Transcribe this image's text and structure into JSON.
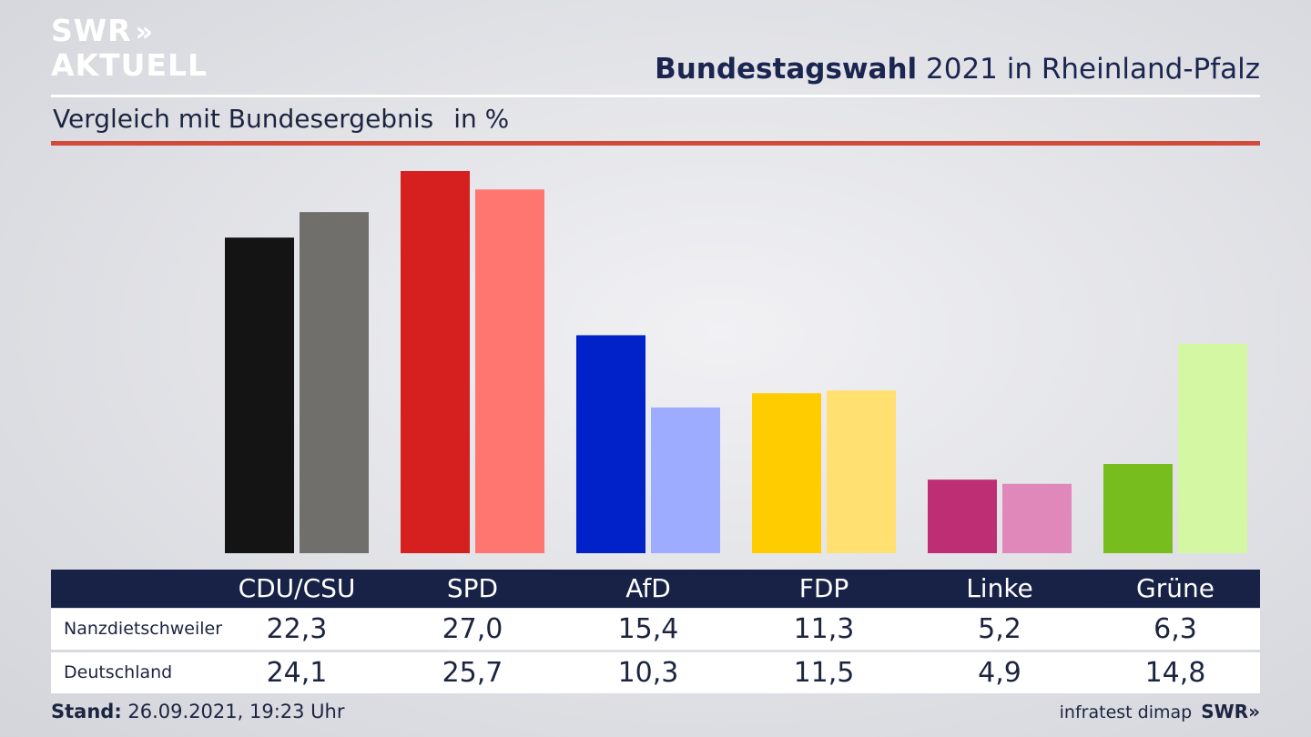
{
  "logo": {
    "line1": "SWR",
    "arrows": "»",
    "line2": "AKTUELL"
  },
  "header": {
    "title_bold": "Bundestagswahl",
    "title_rest": " 2021 in Rheinland-Pfalz"
  },
  "subtitle": {
    "text": "Vergleich mit Bundesergebnis",
    "unit": "in %"
  },
  "footer": {
    "stand_label": "Stand:",
    "stand_value": " 26.09.2021, 19:23 Uhr",
    "source": "infratest dimap",
    "brand": "SWR»"
  },
  "chart_data": {
    "type": "bar",
    "categories": [
      "CDU/CSU",
      "SPD",
      "AfD",
      "FDP",
      "Linke",
      "Grüne"
    ],
    "series": [
      {
        "name": "Nanzdietschweiler",
        "values": [
          22.3,
          27.0,
          15.4,
          11.3,
          5.2,
          6.3
        ],
        "labels": [
          "22,3",
          "27,0",
          "15,4",
          "11,3",
          "5,2",
          "6,3"
        ],
        "colors": [
          "#141414",
          "#d61f1f",
          "#0022c8",
          "#ffcc00",
          "#bd2e74",
          "#78bd1e"
        ]
      },
      {
        "name": "Deutschland",
        "values": [
          24.1,
          25.7,
          10.3,
          11.5,
          4.9,
          14.8
        ],
        "labels": [
          "24,1",
          "25,7",
          "10,3",
          "11,5",
          "4,9",
          "14,8"
        ],
        "colors": [
          "#716f6c",
          "#ff7570",
          "#9eacff",
          "#ffe070",
          "#e088b9",
          "#d4f7a3"
        ]
      }
    ],
    "ylim": [
      0,
      27.0
    ]
  }
}
